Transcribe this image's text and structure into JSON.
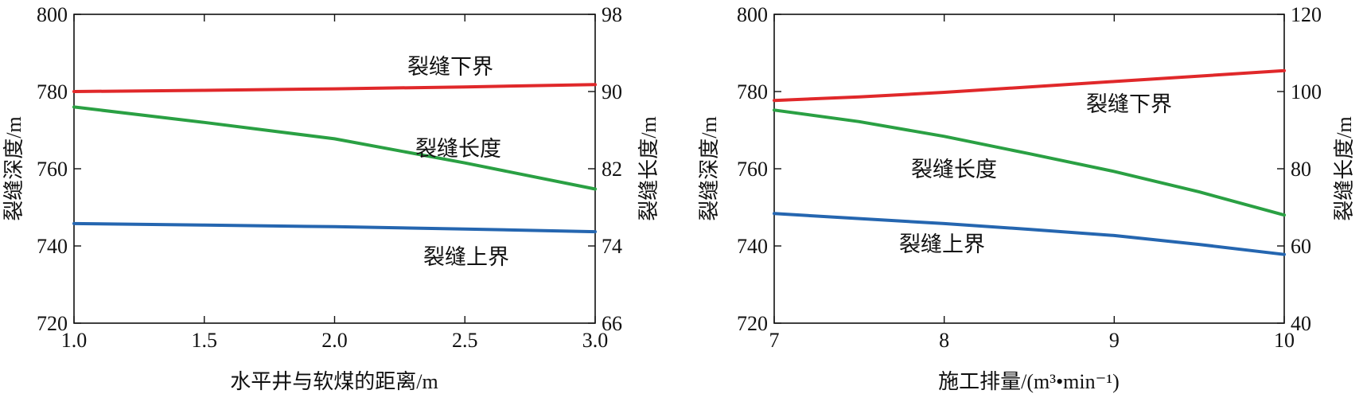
{
  "chart_data": [
    {
      "type": "line",
      "xlabel": "水平井与软煤的距离/m",
      "ylabel_left": "裂缝深度/m",
      "ylabel_right": "裂缝长度/m",
      "xlim": [
        1.0,
        3.0
      ],
      "ylim_left": [
        720,
        800
      ],
      "ylim_right": [
        66,
        98
      ],
      "x_ticks": [
        "1.0",
        "1.5",
        "2.0",
        "2.5",
        "3.0"
      ],
      "y_ticks_left": [
        "720",
        "740",
        "760",
        "780",
        "800"
      ],
      "y_ticks_right": [
        "66",
        "74",
        "82",
        "90",
        "98"
      ],
      "grid": false,
      "series": [
        {
          "name": "裂缝下界",
          "axis": "left",
          "color": "#e0282a",
          "x": [
            1.0,
            1.5,
            2.0,
            2.5,
            3.0
          ],
          "y": [
            780.0,
            780.3,
            780.7,
            781.2,
            781.8
          ]
        },
        {
          "name": "裂缝长度",
          "axis": "right",
          "color": "#2aa043",
          "x": [
            1.0,
            1.5,
            2.0,
            2.5,
            3.0
          ],
          "y": [
            88.4,
            86.8,
            85.1,
            82.6,
            79.9
          ]
        },
        {
          "name": "裂缝上界",
          "axis": "left",
          "color": "#2566b0",
          "x": [
            1.0,
            1.5,
            2.0,
            2.5,
            3.0
          ],
          "y": [
            745.8,
            745.4,
            745.0,
            744.4,
            743.7
          ]
        }
      ]
    },
    {
      "type": "line",
      "xlabel": "施工排量/(m³•min⁻¹)",
      "ylabel_left": "裂缝深度/m",
      "ylabel_right": "裂缝长度/m",
      "xlim": [
        7,
        10
      ],
      "ylim_left": [
        720,
        800
      ],
      "ylim_right": [
        40,
        120
      ],
      "x_ticks": [
        "7",
        "8",
        "9",
        "10"
      ],
      "y_ticks_left": [
        "720",
        "740",
        "760",
        "780",
        "800"
      ],
      "y_ticks_right": [
        "40",
        "60",
        "80",
        "100",
        "120"
      ],
      "grid": false,
      "series": [
        {
          "name": "裂缝下界",
          "axis": "left",
          "color": "#e0282a",
          "x": [
            7,
            7.5,
            8,
            8.5,
            9,
            9.5,
            10
          ],
          "y": [
            777.7,
            778.6,
            779.8,
            781.2,
            782.6,
            784.0,
            785.4
          ]
        },
        {
          "name": "裂缝长度",
          "axis": "right",
          "color": "#2aa043",
          "x": [
            7,
            7.5,
            8,
            8.5,
            9,
            9.5,
            10
          ],
          "y": [
            95.2,
            92.2,
            88.4,
            83.9,
            79.3,
            74.0,
            68.0
          ]
        },
        {
          "name": "裂缝上界",
          "axis": "left",
          "color": "#2566b0",
          "x": [
            7,
            7.5,
            8,
            8.5,
            9,
            9.5,
            10
          ],
          "y": [
            748.4,
            747.1,
            745.8,
            744.3,
            742.7,
            740.4,
            737.8
          ]
        }
      ]
    }
  ]
}
